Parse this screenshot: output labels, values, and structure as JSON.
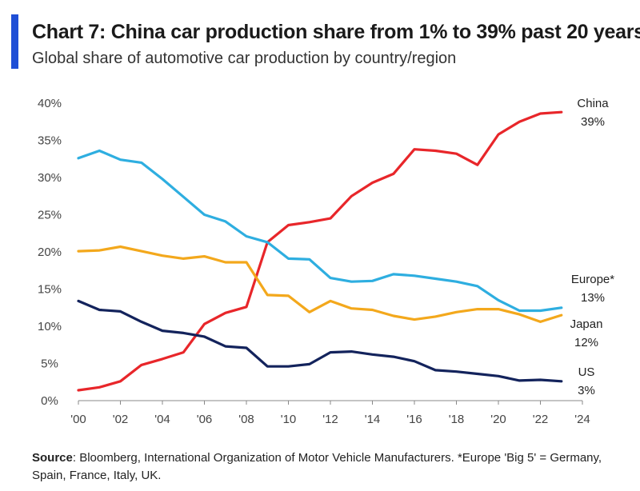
{
  "header": {
    "title": "Chart 7: China car production share from 1% to 39% past 20 years",
    "subtitle": "Global share of automotive car production by country/region"
  },
  "footer": {
    "source_label": "Source",
    "source_text": ": Bloomberg, International Organization of Motor Vehicle Manufacturers. *Europe 'Big 5' = Germany, Spain, France, Italy, UK."
  },
  "colors": {
    "accent": "#1f4fd6",
    "china": "#e8262a",
    "europe": "#2eaee0",
    "japan": "#f3a81c",
    "us": "#13235c",
    "grid": "#d0d0d0"
  },
  "chart_data": {
    "type": "line",
    "title": "Chart 7: China car production share from 1% to 39% past 20 years",
    "subtitle": "Global share of automotive car production by country/region",
    "xlim": [
      2000,
      2024
    ],
    "ylim": [
      0,
      40
    ],
    "x_ticks": [
      2000,
      2002,
      2004,
      2006,
      2008,
      2010,
      2012,
      2014,
      2016,
      2018,
      2020,
      2022,
      2024
    ],
    "x_tick_labels": [
      "'00",
      "'02",
      "'04",
      "'06",
      "'08",
      "'10",
      "'12",
      "'14",
      "'16",
      "'18",
      "'20",
      "'22",
      "'24"
    ],
    "y_ticks": [
      0,
      5,
      10,
      15,
      20,
      25,
      30,
      35,
      40
    ],
    "y_tick_labels": [
      "0%",
      "5%",
      "10%",
      "15%",
      "20%",
      "25%",
      "30%",
      "35%",
      "40%"
    ],
    "grid": false,
    "legend": "inline labels at line ends",
    "x": [
      2000,
      2001,
      2002,
      2003,
      2004,
      2005,
      2006,
      2007,
      2008,
      2009,
      2010,
      2011,
      2012,
      2013,
      2014,
      2015,
      2016,
      2017,
      2018,
      2019,
      2020,
      2021,
      2022,
      2023
    ],
    "series": [
      {
        "name": "China",
        "end_label": "39%",
        "color": "#e8262a",
        "values": [
          1.4,
          1.8,
          2.6,
          4.8,
          5.6,
          6.5,
          10.3,
          11.8,
          12.6,
          21.3,
          23.6,
          24.0,
          24.5,
          27.5,
          29.3,
          30.5,
          33.8,
          33.6,
          33.2,
          31.7,
          35.8,
          37.5,
          38.6,
          38.8
        ]
      },
      {
        "name": "Europe*",
        "end_label": "13%",
        "color": "#2eaee0",
        "values": [
          32.6,
          33.6,
          32.4,
          32.0,
          29.8,
          27.4,
          25.0,
          24.1,
          22.1,
          21.3,
          19.1,
          19.0,
          16.5,
          16.0,
          16.1,
          17.0,
          16.8,
          16.4,
          16.0,
          15.4,
          13.5,
          12.1,
          12.1,
          12.5
        ]
      },
      {
        "name": "Japan",
        "end_label": "12%",
        "color": "#f3a81c",
        "values": [
          20.1,
          20.2,
          20.7,
          20.1,
          19.5,
          19.1,
          19.4,
          18.6,
          18.6,
          14.2,
          14.1,
          11.9,
          13.4,
          12.4,
          12.2,
          11.4,
          10.9,
          11.3,
          11.9,
          12.3,
          12.3,
          11.6,
          10.6,
          11.5
        ]
      },
      {
        "name": "US",
        "end_label": "3%",
        "color": "#13235c",
        "values": [
          13.4,
          12.2,
          12.0,
          10.6,
          9.4,
          9.1,
          8.6,
          7.3,
          7.1,
          4.6,
          4.6,
          4.9,
          6.5,
          6.6,
          6.2,
          5.9,
          5.3,
          4.1,
          3.9,
          3.6,
          3.3,
          2.7,
          2.8,
          2.6
        ]
      }
    ]
  }
}
